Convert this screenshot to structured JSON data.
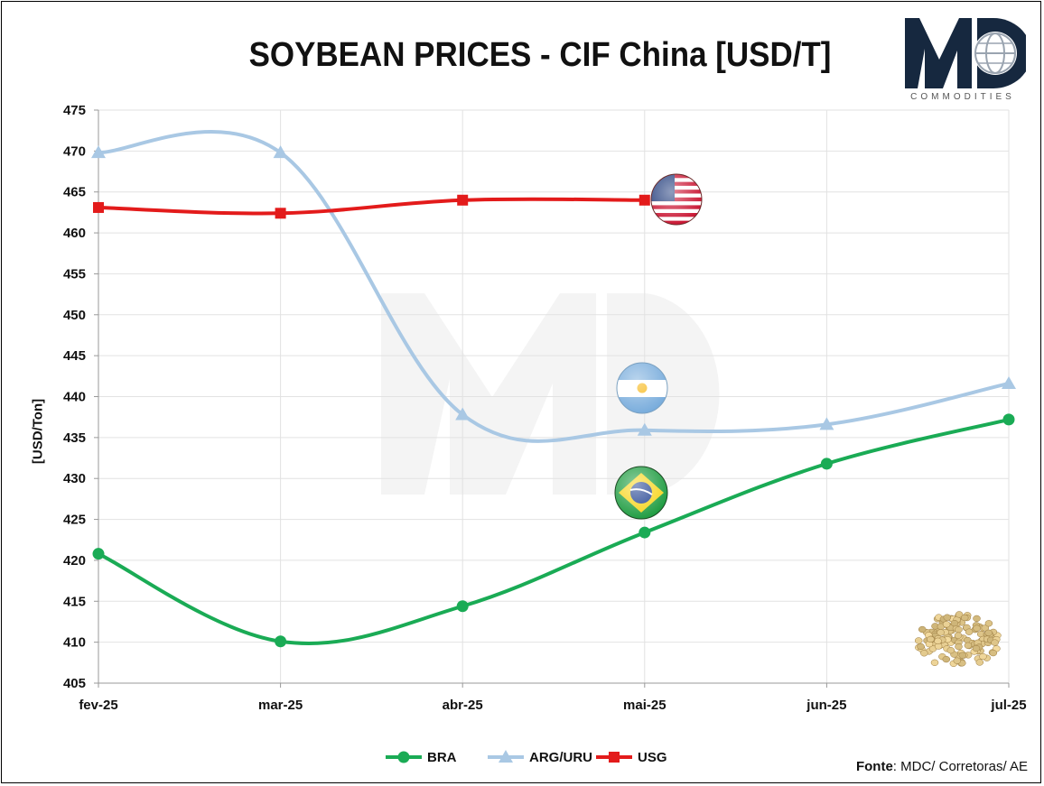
{
  "chart_data": {
    "type": "line",
    "title": "SOYBEAN PRICES - CIF China [USD/T]",
    "ylabel": "[USD/Ton]",
    "xlabel": "",
    "categories": [
      "fev-25",
      "mar-25",
      "abr-25",
      "mai-25",
      "jun-25",
      "jul-25"
    ],
    "ylim": [
      405,
      475
    ],
    "yticks": [
      405,
      410,
      415,
      420,
      425,
      430,
      435,
      440,
      445,
      450,
      455,
      460,
      465,
      470,
      475
    ],
    "grid": true,
    "legend_position": "bottom",
    "series": [
      {
        "name": "BRA",
        "color": "#1aab55",
        "marker": "circle",
        "values": [
          420.8,
          410.1,
          414.4,
          423.4,
          431.8,
          437.2
        ]
      },
      {
        "name": "ARG/URU",
        "color": "#a9c8e4",
        "marker": "triangle",
        "values": [
          469.8,
          469.8,
          437.8,
          435.9,
          436.6,
          441.6
        ]
      },
      {
        "name": "USG",
        "color": "#e31b1b",
        "marker": "square",
        "values": [
          463.1,
          462.4,
          464.0,
          464.0,
          null,
          null
        ]
      }
    ]
  },
  "source": {
    "label": "Fonte",
    "text": ": MDC/ Corretoras/ AE"
  },
  "logo": {
    "text": "COMMODITIES"
  }
}
